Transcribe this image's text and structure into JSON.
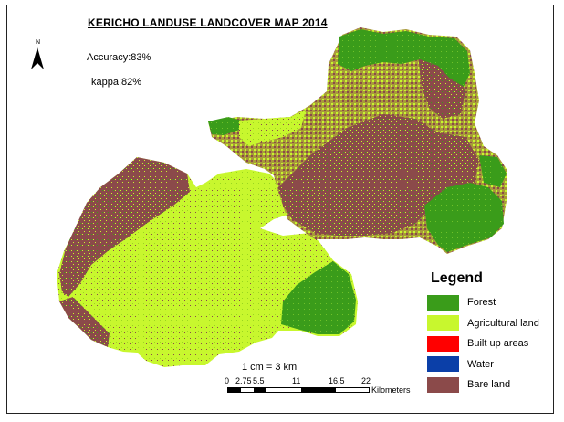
{
  "map": {
    "title": "KERICHO LANDUSE LANDCOVER MAP 2014",
    "north_label": "N",
    "accuracy": "Accuracy:83%",
    "kappa": "kappa:82%",
    "legend": {
      "title": "Legend",
      "items": [
        {
          "label": "Forest",
          "color": "#3a9c1a"
        },
        {
          "label": "Agricultural land",
          "color": "#c8f72e"
        },
        {
          "label": "Built up areas",
          "color": "#ff0000"
        },
        {
          "label": "Water",
          "color": "#0b3fa8"
        },
        {
          "label": "Bare land",
          "color": "#8b4a4a"
        }
      ]
    },
    "scale": {
      "ratio": "1 cm = 3 km",
      "ticks": [
        "0",
        "2.75",
        "5.5",
        "11",
        "16.5",
        "22"
      ],
      "units": "Kilometers"
    }
  }
}
